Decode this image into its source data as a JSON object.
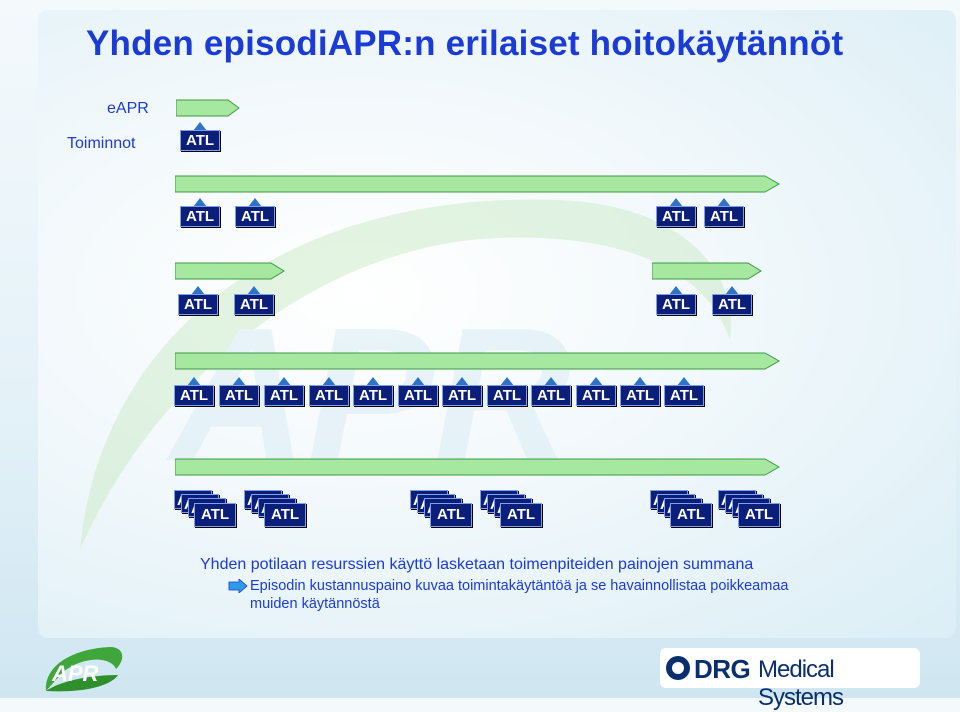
{
  "title": "Yhden episodiAPR:n erilaiset hoitokäytännöt",
  "legend": {
    "eapr": "eAPR",
    "toiminnot": "Toiminnot"
  },
  "atl": "ATL",
  "watermark_text": "APR",
  "bullets": {
    "main": "Yhden potilaan resurssien käyttö lasketaan toimenpiteiden painojen summana",
    "sub": "Episodin kustannuspaino kuvaa toimintakäytäntöä ja se havainnollistaa poikkeamaa muiden käytännöstä"
  },
  "logos": {
    "apr": "APR",
    "drg_brand": "DRG",
    "drg_rest": "Medical Systems"
  },
  "colors": {
    "title": "#1a3bd6",
    "atl_box": "#0b1f7a",
    "arrow": "#a6e8a0"
  }
}
